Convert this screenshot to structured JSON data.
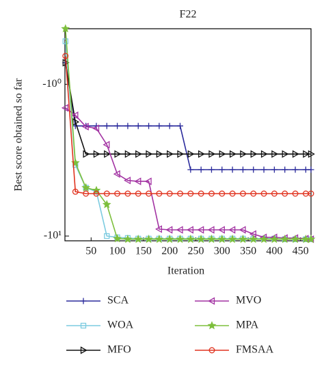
{
  "chart_data": {
    "type": "line",
    "title": "F22",
    "x_label": "Iteration",
    "y_label": "Best score obtained so far",
    "yscale": "log",
    "xlim": [
      0,
      470
    ],
    "ylim": [
      -10.75,
      -0.43
    ],
    "xticks": [
      50,
      100,
      150,
      200,
      250,
      300,
      350,
      400,
      450
    ],
    "yticks": [
      {
        "value": -1,
        "label": "-10⁰"
      },
      {
        "value": -10,
        "label": "-10¹"
      }
    ],
    "x": [
      1,
      20,
      40,
      60,
      80,
      100,
      120,
      140,
      160,
      180,
      200,
      220,
      240,
      260,
      280,
      300,
      320,
      340,
      360,
      380,
      400,
      420,
      440,
      460,
      470
    ],
    "series": [
      {
        "name": "SCA",
        "color": "#2a2a9c",
        "marker": "plus",
        "values": [
          -0.72,
          -1.88,
          -1.88,
          -1.88,
          -1.88,
          -1.88,
          -1.88,
          -1.88,
          -1.88,
          -1.88,
          -1.88,
          -1.88,
          -3.65,
          -3.65,
          -3.65,
          -3.65,
          -3.65,
          -3.65,
          -3.65,
          -3.65,
          -3.65,
          -3.65,
          -3.65,
          -3.65,
          -3.65
        ]
      },
      {
        "name": "WOA",
        "color": "#7ccbe0",
        "marker": "square",
        "values": [
          -0.52,
          -3.4,
          -4.8,
          -5.1,
          -10.0,
          -10.2,
          -10.3,
          -10.4,
          -10.4,
          -10.4,
          -10.4,
          -10.4,
          -10.4,
          -10.4,
          -10.4,
          -10.4,
          -10.4,
          -10.4,
          -10.4,
          -10.4,
          -10.4,
          -10.5,
          -10.5,
          -10.5,
          -10.5
        ]
      },
      {
        "name": "MFO",
        "color": "#111111",
        "marker": "triangle-right",
        "values": [
          -0.72,
          -1.77,
          -2.88,
          -2.88,
          -2.88,
          -2.88,
          -2.88,
          -2.88,
          -2.88,
          -2.88,
          -2.88,
          -2.88,
          -2.88,
          -2.88,
          -2.88,
          -2.88,
          -2.88,
          -2.88,
          -2.88,
          -2.88,
          -2.88,
          -2.88,
          -2.88,
          -2.88,
          -2.88
        ]
      },
      {
        "name": "MVO",
        "color": "#a232a2",
        "marker": "triangle-left",
        "values": [
          -1.43,
          -1.6,
          -1.9,
          -1.95,
          -2.5,
          -3.9,
          -4.3,
          -4.36,
          -4.36,
          -9.0,
          -9.1,
          -9.1,
          -9.1,
          -9.1,
          -9.1,
          -9.1,
          -9.1,
          -9.1,
          -9.7,
          -10.2,
          -10.2,
          -10.3,
          -10.3,
          -10.4,
          -10.5
        ]
      },
      {
        "name": "MPA",
        "color": "#7dbf3c",
        "marker": "star",
        "values": [
          -0.43,
          -3.29,
          -4.8,
          -5.0,
          -6.2,
          -10.4,
          -10.5,
          -10.5,
          -10.5,
          -10.5,
          -10.5,
          -10.5,
          -10.5,
          -10.5,
          -10.5,
          -10.5,
          -10.5,
          -10.5,
          -10.5,
          -10.5,
          -10.5,
          -10.5,
          -10.5,
          -10.5,
          -10.5
        ]
      },
      {
        "name": "FMSAA",
        "color": "#e0321e",
        "marker": "circle",
        "values": [
          -0.65,
          -5.1,
          -5.25,
          -5.25,
          -5.25,
          -5.25,
          -5.25,
          -5.25,
          -5.25,
          -5.25,
          -5.25,
          -5.25,
          -5.25,
          -5.25,
          -5.25,
          -5.25,
          -5.25,
          -5.25,
          -5.25,
          -5.25,
          -5.25,
          -5.25,
          -5.25,
          -5.25,
          -5.25
        ]
      }
    ]
  }
}
